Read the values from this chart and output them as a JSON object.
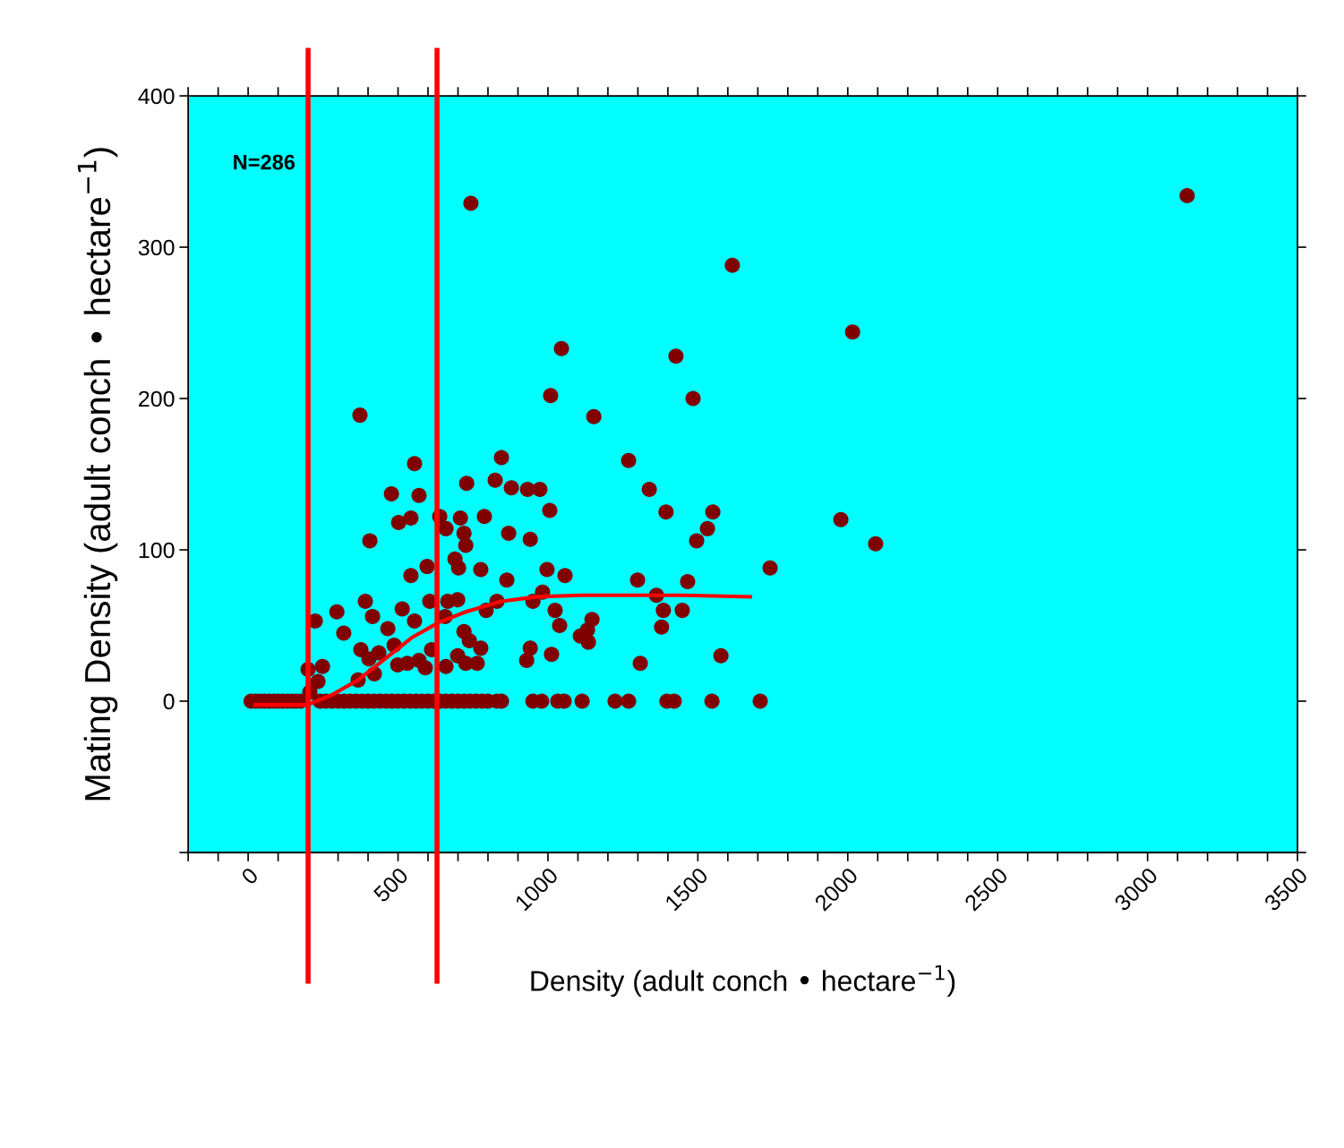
{
  "chart_data": {
    "type": "scatter",
    "xlabel": "Density (adult conch • hectare$^{−1}$)",
    "ylabel": "Mating Density (adult conch • hectare$^{−1}$)",
    "annotations": [
      "N=286"
    ],
    "xlim": [
      -200,
      3500
    ],
    "xticks": [
      {
        "value": -200,
        "label": null
      },
      {
        "value": -100,
        "label": null
      },
      0,
      {
        "value": 100,
        "label": null
      },
      {
        "value": 200,
        "label": null
      },
      {
        "value": 300,
        "label": null
      },
      {
        "value": 400,
        "label": null
      },
      500,
      {
        "value": 600,
        "label": null
      },
      {
        "value": 700,
        "label": null
      },
      {
        "value": 800,
        "label": null
      },
      {
        "value": 900,
        "label": null
      },
      1000,
      {
        "value": 1100,
        "label": null
      },
      {
        "value": 1200,
        "label": null
      },
      {
        "value": 1300,
        "label": null
      },
      {
        "value": 1400,
        "label": null
      },
      1500,
      {
        "value": 1600,
        "label": null
      },
      {
        "value": 1700,
        "label": null
      },
      {
        "value": 1800,
        "label": null
      },
      {
        "value": 1900,
        "label": null
      },
      2000,
      {
        "value": 2100,
        "label": null
      },
      {
        "value": 2200,
        "label": null
      },
      {
        "value": 2300,
        "label": null
      },
      {
        "value": 2400,
        "label": null
      },
      2500,
      {
        "value": 2600,
        "label": null
      },
      {
        "value": 2700,
        "label": null
      },
      {
        "value": 2800,
        "label": null
      },
      {
        "value": 2900,
        "label": null
      },
      3000,
      {
        "value": 3100,
        "label": null
      },
      {
        "value": 3200,
        "label": null
      },
      {
        "value": 3300,
        "label": null
      },
      {
        "value": 3400,
        "label": null
      },
      3500
    ],
    "ylim": [
      -100,
      400
    ],
    "yticks": [
      {
        "value": -100,
        "label": null
      },
      0,
      100,
      200,
      300,
      400
    ],
    "ref_lines": [
      {
        "axis": "x",
        "value": 200,
        "color": "#ff0000"
      },
      {
        "axis": "x",
        "value": 630,
        "color": "#ff0000"
      }
    ],
    "series": [
      {
        "color": "#800000",
        "marker": "circle",
        "x": [
          743,
          3132,
          1615,
          2016,
          1045,
          1427,
          1009,
          1484,
          373,
          1153,
          1269,
          845,
          555,
          824,
          729,
          878,
          932,
          973,
          1338,
          478,
          570,
          1006,
          639,
          543,
          708,
          788,
          1394,
          1550,
          502,
          720,
          869,
          660,
          941,
          726,
          406,
          1496,
          2093,
          1977,
          1532,
          597,
          702,
          776,
          997,
          1741,
          690,
          543,
          863,
          1057,
          1299,
          1466,
          391,
          666,
          606,
          699,
          830,
          950,
          982,
          1362,
          1385,
          1448,
          1024,
          794,
          296,
          224,
          514,
          555,
          657,
          415,
          1147,
          1039,
          1379,
          1132,
          1108,
          1135,
          720,
          319,
          466,
          738,
          776,
          376,
          941,
          436,
          612,
          487,
          1012,
          1577,
          1308,
          929,
          764,
          726,
          699,
          660,
          591,
          531,
          499,
          570,
          403,
          248,
          200,
          421,
          233,
          367,
          206,
          10,
          25,
          40,
          55,
          70,
          85,
          100,
          115,
          130,
          145,
          160,
          175,
          240,
          260,
          280,
          300,
          320,
          340,
          360,
          380,
          400,
          420,
          440,
          460,
          480,
          500,
          520,
          540,
          560,
          580,
          600,
          620,
          640,
          660,
          680,
          700,
          720,
          740,
          760,
          780,
          800,
          830,
          845,
          950,
          979,
          1033,
          1054,
          1114,
          1224,
          1269,
          1397,
          1421,
          1547,
          1708
        ],
        "values": [
          329,
          334,
          288,
          244,
          233,
          228,
          202,
          200,
          189,
          188,
          159,
          161,
          157,
          146,
          144,
          141,
          140,
          140,
          140,
          137,
          136,
          126,
          122,
          121,
          121,
          122,
          125,
          125,
          118,
          111,
          111,
          114,
          107,
          103,
          106,
          106,
          104,
          120,
          114,
          89,
          88,
          87,
          87,
          88,
          94,
          83,
          80,
          83,
          80,
          79,
          66,
          66,
          66,
          67,
          66,
          66,
          72,
          70,
          60,
          60,
          60,
          60,
          59,
          53,
          61,
          53,
          56,
          56,
          54,
          50,
          49,
          47,
          43,
          39,
          46,
          45,
          48,
          40,
          35,
          34,
          35,
          32,
          34,
          37,
          31,
          30,
          25,
          27,
          25,
          25,
          30,
          23,
          22,
          25,
          24,
          27,
          28,
          23,
          21,
          18,
          13,
          14,
          6,
          0,
          0,
          0,
          0,
          0,
          0,
          0,
          0,
          0,
          0,
          0,
          0,
          0,
          0,
          0,
          0,
          0,
          0,
          0,
          0,
          0,
          0,
          0,
          0,
          0,
          0,
          0,
          0,
          0,
          0,
          0,
          0,
          0,
          0,
          0,
          0,
          0,
          0,
          0,
          0,
          0,
          0,
          0,
          0,
          0,
          0,
          0,
          0,
          0,
          0,
          0,
          0,
          0,
          0
        ]
      },
      {
        "type": "line",
        "color": "#ff0000",
        "marker": "none",
        "line_style": "solid",
        "x": [
          24,
          197,
          278,
          367,
          457,
          546,
          636,
          726,
          845,
          964,
          1114,
          1263,
          1442,
          1675
        ],
        "values": [
          -2.4,
          -2.4,
          4,
          14,
          28,
          42,
          52,
          59,
          66,
          69,
          70,
          70,
          70,
          69
        ]
      }
    ]
  }
}
